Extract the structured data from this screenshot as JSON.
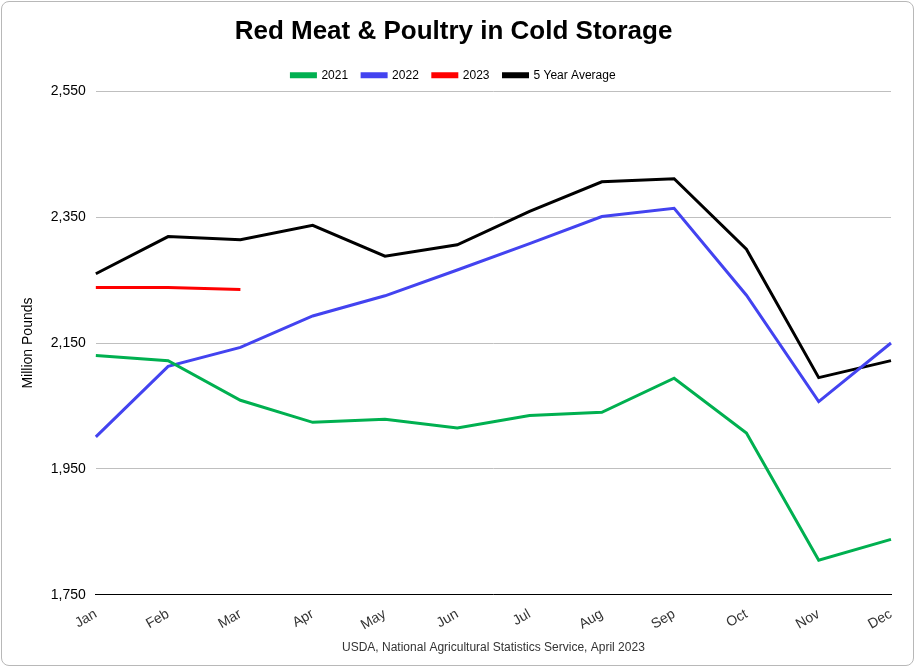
{
  "chart_data": {
    "type": "line",
    "title": "Red Meat & Poultry in Cold Storage",
    "y_label": "Million Pounds",
    "x_label": "USDA, National Agricultural Statistics Service, April 2023",
    "categories": [
      "Jan",
      "Feb",
      "Mar",
      "Apr",
      "May",
      "Jun",
      "Jul",
      "Aug",
      "Sep",
      "Oct",
      "Nov",
      "Dec"
    ],
    "series": [
      {
        "name": "2021",
        "color": "#00b050",
        "values": [
          2130,
          2122,
          2059,
          2024,
          2029,
          2015,
          2035,
          2040,
          2094,
          2007,
          1805,
          1838
        ]
      },
      {
        "name": "2022",
        "color": "#4343f0",
        "values": [
          2001,
          2113,
          2143,
          2193,
          2225,
          2266,
          2308,
          2351,
          2364,
          2226,
          2057,
          2150
        ]
      },
      {
        "name": "2023",
        "color": "#ff0000",
        "values": [
          2238,
          2238,
          2235,
          null,
          null,
          null,
          null,
          null,
          null,
          null,
          null,
          null
        ]
      },
      {
        "name": "5 Year Average",
        "color": "#000000",
        "values": [
          2260,
          2319,
          2314,
          2337,
          2288,
          2306,
          2359,
          2406,
          2411,
          2299,
          2095,
          2122
        ]
      }
    ],
    "ylim": [
      1750,
      2550
    ],
    "yticks": [
      {
        "value": 1750,
        "label": "1,750"
      },
      {
        "value": 1950,
        "label": "1,950"
      },
      {
        "value": 2150,
        "label": "2,150"
      },
      {
        "value": 2350,
        "label": "2,350"
      },
      {
        "value": 2550,
        "label": "2,550"
      }
    ],
    "grid": true,
    "legend": "top"
  }
}
